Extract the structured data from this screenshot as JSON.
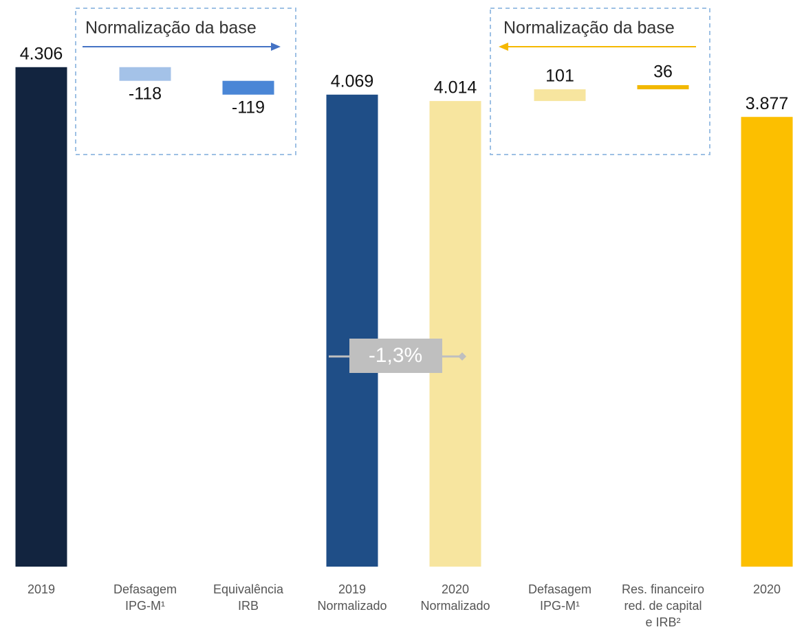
{
  "chart_data": {
    "type": "waterfall",
    "categories": [
      [
        "2019"
      ],
      [
        "Defasagem",
        "IPG-M¹"
      ],
      [
        "Equivalência",
        "IRB"
      ],
      [
        "2019",
        "Normalizado"
      ],
      [
        "2020",
        "Normalizado"
      ],
      [
        "Defasagem",
        "IPG-M¹"
      ],
      [
        "Res. financeiro",
        "red. de capital",
        "e IRB²"
      ],
      [
        "2020"
      ]
    ],
    "values": [
      4306,
      -118,
      -119,
      4069,
      4014,
      101,
      36,
      3877
    ],
    "value_labels": [
      "4.306",
      "-118",
      "-119",
      "4.069",
      "4.014",
      "101",
      "36",
      "3.877"
    ],
    "kinds": [
      "total",
      "delta",
      "delta",
      "total",
      "total",
      "delta",
      "delta",
      "total"
    ],
    "colors": [
      "#12243f",
      "#a4c2e8",
      "#4a86d6",
      "#1f4e87",
      "#f7e59f",
      "#f7e59f",
      "#f2b800",
      "#fcbf00"
    ],
    "ylim": [
      0,
      4500
    ],
    "annotations": [
      "Normalização da base",
      "Normalização da base",
      "-1,3%"
    ]
  }
}
